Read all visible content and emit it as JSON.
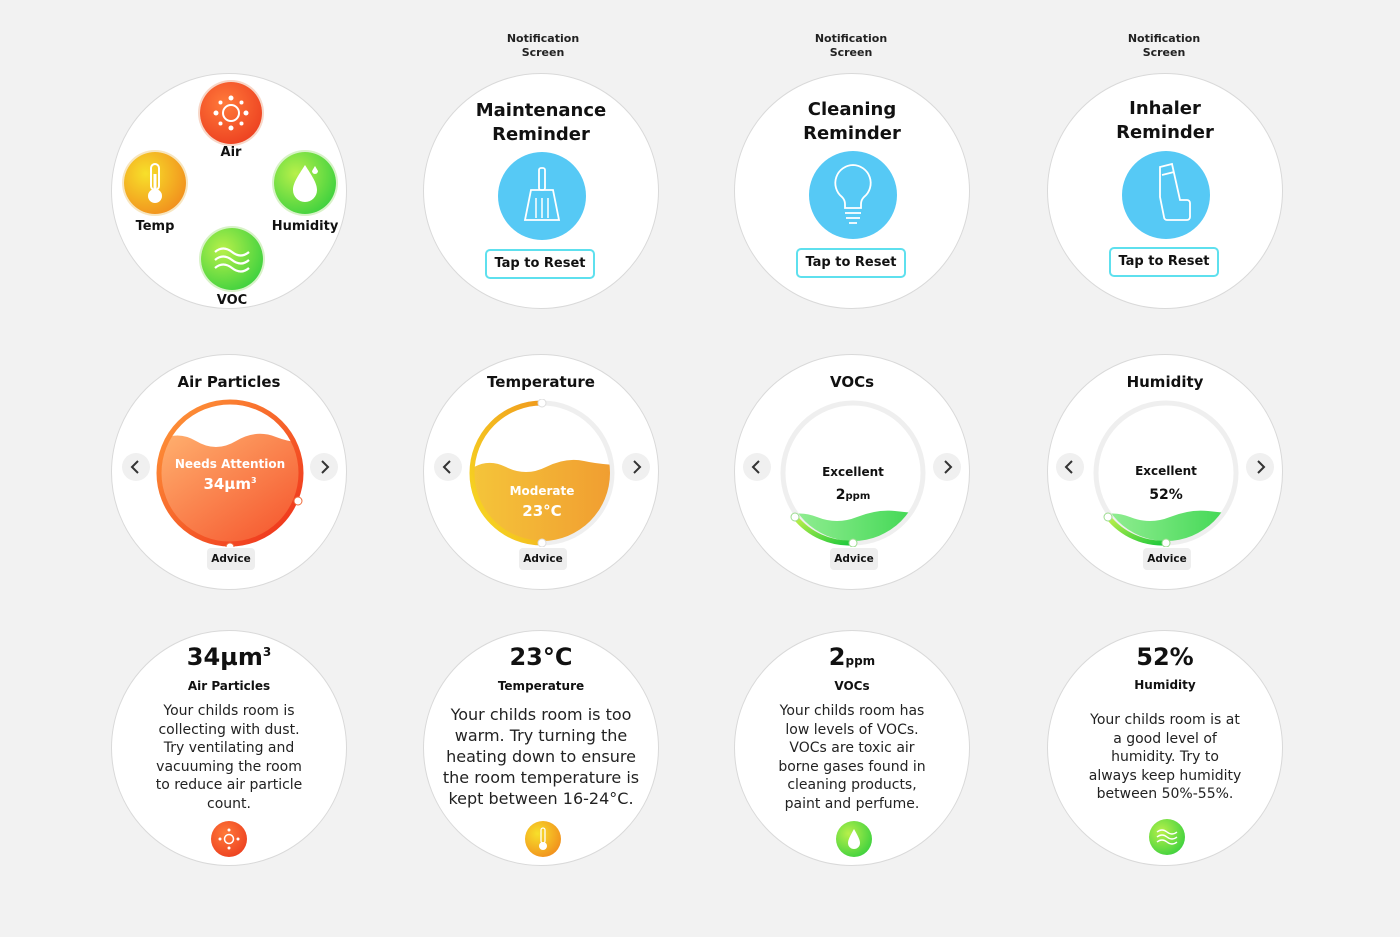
{
  "notification_label": "Notification\nScreen",
  "home": {
    "items": [
      {
        "label": "Air",
        "icon": "air-particles-icon"
      },
      {
        "label": "Temp",
        "icon": "thermometer-icon"
      },
      {
        "label": "Humidity",
        "icon": "water-drop-icon"
      },
      {
        "label": "VOC",
        "icon": "waves-icon"
      }
    ]
  },
  "reminders": [
    {
      "title_line1": "Maintenance",
      "title_line2": "Reminder",
      "icon": "broom-icon",
      "button": "Tap to Reset"
    },
    {
      "title_line1": "Cleaning",
      "title_line2": "Reminder",
      "icon": "light-bulb-icon",
      "button": "Tap to Reset"
    },
    {
      "title_line1": "Inhaler",
      "title_line2": "Reminder",
      "icon": "inhaler-icon",
      "button": "Tap to Reset"
    }
  ],
  "gauges": [
    {
      "title": "Air Particles",
      "status": "Needs Attention",
      "value": "34µm",
      "sup": "3",
      "sub": "",
      "advice": "Advice",
      "level": 0.7
    },
    {
      "title": "Temperature",
      "status": "Moderate",
      "value": "23°C",
      "sup": "",
      "sub": "",
      "advice": "Advice",
      "level": 0.55
    },
    {
      "title": "VOCs",
      "status": "Excellent",
      "value": "2",
      "sup": "",
      "sub": "ppm",
      "advice": "Advice",
      "level": 0.22
    },
    {
      "title": "Humidity",
      "status": "Excellent",
      "value": "52%",
      "sup": "",
      "sub": "",
      "advice": "Advice",
      "level": 0.22
    }
  ],
  "details": [
    {
      "value": "34µm",
      "sup": "3",
      "sub": "",
      "name": "Air Particles",
      "lines": [
        "Your childs room is",
        "collecting with dust.",
        "Try ventilating and",
        "vacuuming the room",
        "to reduce air particle",
        "count."
      ],
      "icon": "air-particles-icon"
    },
    {
      "value": "23°C",
      "sup": "",
      "sub": "",
      "name": "Temperature",
      "lines": [
        "Your childs room is too",
        "warm. Try turning the",
        "heating down to ensure",
        "the room temperature is",
        "kept between 16-24°C."
      ],
      "icon": "thermometer-icon"
    },
    {
      "value": "2",
      "sup": "",
      "sub": "ppm",
      "name": "VOCs",
      "lines": [
        "Your childs room has",
        "low levels of VOCs.",
        "VOCs are toxic air",
        "borne gases found in",
        "cleaning products,",
        "paint and perfume."
      ],
      "icon": "water-drop-icon"
    },
    {
      "value": "52%",
      "sup": "",
      "sub": "",
      "name": "Humidity",
      "lines": [
        "Your childs room is at",
        "a good level of",
        "humidity. Try to",
        "always keep humidity",
        "between 50%-55%."
      ],
      "icon": "waves-icon"
    }
  ],
  "colors": {
    "red": "#f0421c",
    "orange": "#f7a21d",
    "yellow": "#f2dd1f",
    "green": "#3ddb45",
    "lightblue": "#56c9f5",
    "cyan_border": "#5ee0ee"
  }
}
